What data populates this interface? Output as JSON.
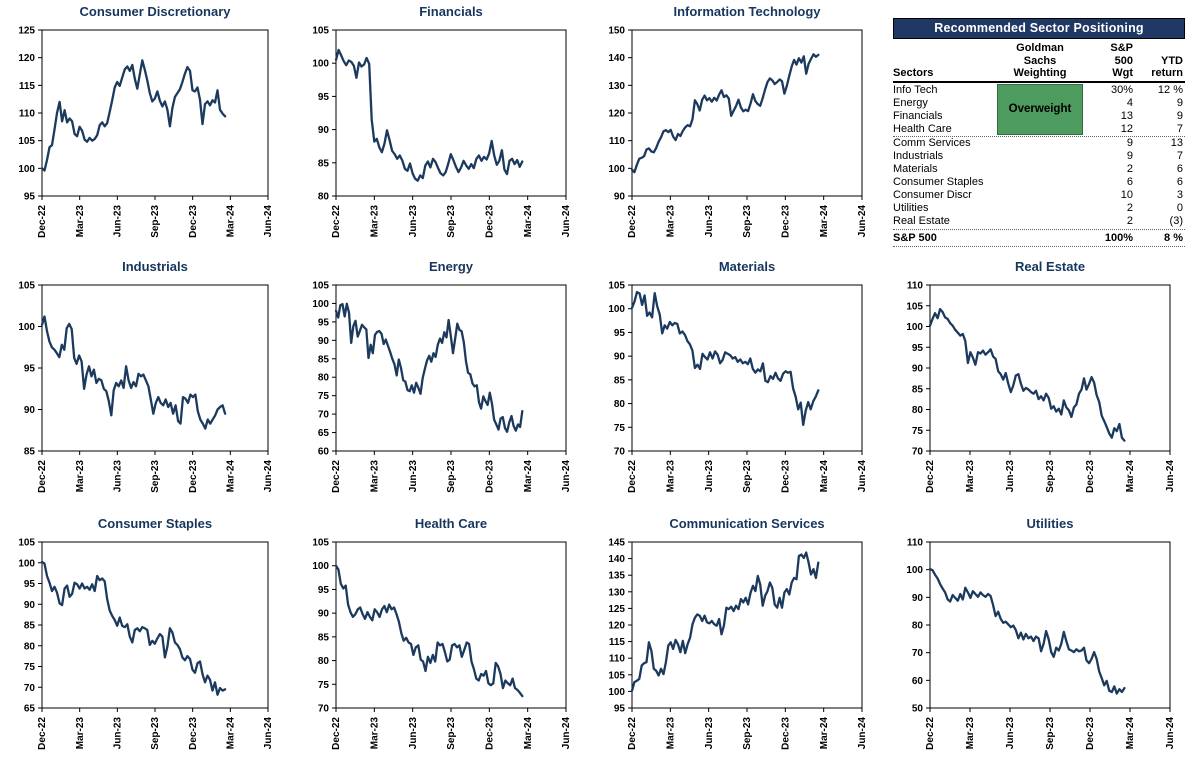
{
  "colors": {
    "line": "#1C3A5E",
    "title": "#17365D",
    "axis": "#000000",
    "table_header_bg": "#1F3864",
    "table_header_text": "#FFFFFF",
    "overweight_bg": "#4E9B5F"
  },
  "x_tick_labels": [
    "Dec-22",
    "Mar-23",
    "Jun-23",
    "Sep-23",
    "Dec-23",
    "Mar-24",
    "Jun-24"
  ],
  "chart_data": [
    {
      "type": "line",
      "id": "consumer-discretionary",
      "row": 0,
      "col": 0,
      "title": "Consumer Discretionary",
      "ylim": [
        95,
        125
      ],
      "ystep": 5,
      "values": [
        100,
        99.6,
        101.5,
        103.8,
        104.2,
        107,
        110,
        112,
        108.5,
        110.5,
        108.3,
        109,
        108.5,
        106.2,
        105.8,
        107.5,
        106.8,
        105.2,
        104.8,
        105.5,
        105,
        105.3,
        106,
        107.8,
        108.3,
        107.6,
        108.2,
        110.2,
        112.3,
        114.6,
        115.6,
        114.9,
        116.4,
        117.9,
        118.4,
        117.6,
        118.7,
        116.2,
        114.4,
        117,
        119.5,
        117.8,
        115.9,
        113.6,
        112.1,
        112.6,
        113.9,
        112.2,
        111.2,
        112.1,
        110.6,
        107.6,
        110.9,
        112.9,
        113.6,
        114.3,
        115.6,
        117.1,
        118.3,
        117.6,
        114.1,
        113.9,
        114.6,
        112.4,
        108,
        111.6,
        112.1,
        111.4,
        112.3,
        111.9,
        114.1,
        110.6,
        109.9,
        109.4
      ]
    },
    {
      "type": "line",
      "id": "financials",
      "row": 0,
      "col": 1,
      "title": "Financials",
      "ylim": [
        80,
        105
      ],
      "ystep": 5,
      "values": [
        100.5,
        102,
        101.2,
        100.3,
        99.7,
        100.4,
        100.2,
        99.6,
        97.8,
        100.1,
        99.5,
        99.8,
        100.8,
        99.9,
        91.5,
        88.2,
        88.6,
        87.3,
        86.6,
        87.9,
        89.9,
        88.4,
        86.8,
        86.3,
        85.6,
        86.1,
        85.3,
        84.1,
        83.8,
        84.9,
        83.4,
        82.6,
        82.3,
        83.1,
        82.7,
        84.6,
        85.2,
        84.3,
        85.6,
        85.1,
        84.2,
        83.4,
        83.1,
        83.6,
        84.9,
        86.3,
        85.4,
        84.4,
        83.6,
        84.3,
        85.3,
        84.6,
        84.1,
        84.8,
        84.2,
        85.6,
        86.1,
        85.3,
        85.9,
        85.5,
        86.4,
        88.3,
        86.1,
        84.7,
        85.3,
        86.9,
        84,
        83.3,
        85.3,
        85.6,
        84.8,
        85.4,
        84.4,
        85.2
      ]
    },
    {
      "type": "line",
      "id": "information-technology",
      "row": 0,
      "col": 2,
      "title": "Information Technology",
      "ylim": [
        90,
        150
      ],
      "ystep": 10,
      "values": [
        99.5,
        98.6,
        101.2,
        103.5,
        103.8,
        104.4,
        106.8,
        107.2,
        106.1,
        105.8,
        107.4,
        109.6,
        111.2,
        113.4,
        113.8,
        113.1,
        113.9,
        111.5,
        110.2,
        112.4,
        111.7,
        113.5,
        114.8,
        115.6,
        115.2,
        117.8,
        124.6,
        123.2,
        120.9,
        124.8,
        126.3,
        124.6,
        125.4,
        124.1,
        125.5,
        124.5,
        126.6,
        128.2,
        125.8,
        126.4,
        125.2,
        119,
        120.8,
        122.5,
        124.8,
        122,
        120.6,
        121.2,
        120.7,
        123.5,
        126.8,
        124.3,
        123.2,
        122.6,
        125.4,
        128.5,
        131.2,
        132.5,
        131.8,
        130.5,
        131.2,
        132.1,
        131.5,
        127,
        129.8,
        133.5,
        136.8,
        139.2,
        137.5,
        139.8,
        138.2,
        140.5,
        134.2,
        137.8,
        139.5,
        141.2,
        140.3,
        141
      ]
    },
    {
      "type": "line",
      "id": "industrials",
      "row": 1,
      "col": 0,
      "title": "Industrials",
      "ylim": [
        85,
        105
      ],
      "ystep": 5,
      "values": [
        100.2,
        101.2,
        99.5,
        98.2,
        97.5,
        97.2,
        96.8,
        96.3,
        97.8,
        97.2,
        99.8,
        100.3,
        99.7,
        96.2,
        95.5,
        96.5,
        95.8,
        92.5,
        94.2,
        95.2,
        94,
        94.8,
        93.2,
        93.7,
        93.5,
        92.5,
        92.2,
        91,
        89.3,
        92.3,
        93.2,
        92.8,
        93.5,
        92.6,
        95.2,
        93.5,
        92.6,
        93.3,
        92.8,
        94.3,
        94,
        94.2,
        93.5,
        92.8,
        91.2,
        89.5,
        90.8,
        91.5,
        90.8,
        90.5,
        91.2,
        90.3,
        90.8,
        89.5,
        90.5,
        88.6,
        88.3,
        91.5,
        91.3,
        90.8,
        91.8,
        91.5,
        91.8,
        89.8,
        88.8,
        88.3,
        87.7,
        88.8,
        88.3,
        88.8,
        89.3,
        90,
        90.3,
        90.5,
        89.5
      ]
    },
    {
      "type": "line",
      "id": "energy",
      "row": 1,
      "col": 1,
      "title": "Energy",
      "ylim": [
        60,
        105
      ],
      "ystep": 5,
      "values": [
        98,
        96.2,
        99.5,
        99.8,
        96.5,
        99.9,
        97.5,
        89.3,
        93.8,
        95.3,
        91,
        92.5,
        94.2,
        93.5,
        93,
        85.2,
        88.8,
        86.5,
        91.5,
        92.3,
        92.5,
        91.8,
        89,
        90.2,
        88.5,
        86.8,
        85,
        83.5,
        80.5,
        84.8,
        82.5,
        79.2,
        78.8,
        76.5,
        76.2,
        77.8,
        75.8,
        78.5,
        77.2,
        75.5,
        79.8,
        82.2,
        84.5,
        85.8,
        84.2,
        86.5,
        85.5,
        88.8,
        90.5,
        89.3,
        92.2,
        90.8,
        95.5,
        91.2,
        86.5,
        90.3,
        94.5,
        92.8,
        92.5,
        89.5,
        84.3,
        81.2,
        80.8,
        78.3,
        77.5,
        77.8,
        73.2,
        71.5,
        74.8,
        73.5,
        72.5,
        75.8,
        72.8,
        68.5,
        67.2,
        65.8,
        68.8,
        69.2,
        66.2,
        65.2,
        67.8,
        69.5,
        66.8,
        65.5,
        67.2,
        66.5,
        70.8
      ]
    },
    {
      "type": "line",
      "id": "materials",
      "row": 1,
      "col": 2,
      "title": "Materials",
      "ylim": [
        70,
        105
      ],
      "ystep": 5,
      "values": [
        100.2,
        101.5,
        103.5,
        103.2,
        100.8,
        102.8,
        98.5,
        99.2,
        98.2,
        103.3,
        100.5,
        98.8,
        94.8,
        96.5,
        95.8,
        97.2,
        96.5,
        97,
        96.8,
        94.8,
        95.2,
        94.5,
        93.2,
        92.5,
        91.2,
        87.5,
        88.2,
        87.3,
        90.5,
        89.8,
        89.3,
        90.8,
        89.5,
        91,
        90.3,
        88.5,
        89.2,
        90.8,
        90.5,
        90.2,
        89.5,
        89.8,
        88.8,
        89.3,
        88.5,
        88.8,
        88.3,
        89.5,
        87.3,
        86.5,
        87.2,
        86.8,
        88.5,
        84.8,
        84.5,
        85.8,
        85.2,
        86.5,
        85.3,
        84.8,
        86.3,
        86.8,
        86.5,
        86.7,
        83.2,
        81.5,
        78.8,
        80.2,
        75.5,
        78.5,
        80.3,
        78.8,
        80.5,
        81.5,
        82.8
      ]
    },
    {
      "type": "line",
      "id": "real-estate",
      "row": 1,
      "col": 3,
      "title": "Real Estate",
      "ylim": [
        70,
        110
      ],
      "ystep": 5,
      "values": [
        100.2,
        101.8,
        103.2,
        102,
        104.2,
        103.5,
        102.2,
        101.8,
        100.8,
        100.2,
        99.2,
        98.5,
        97.8,
        98.2,
        96.5,
        91.2,
        93.8,
        92.5,
        90.8,
        93.8,
        93.5,
        94.2,
        93.2,
        93.8,
        94.5,
        92.8,
        92.2,
        89.2,
        88.5,
        87.2,
        88.8,
        86.2,
        84.2,
        85.8,
        88.2,
        88.5,
        86.2,
        84.5,
        85.2,
        84.8,
        84.2,
        83.8,
        84.5,
        82.5,
        83.2,
        82.2,
        83.8,
        82.8,
        80.2,
        80.8,
        79.5,
        80.2,
        78.8,
        82.2,
        80.5,
        79.8,
        78.2,
        80.5,
        81.2,
        83.8,
        84.8,
        87.5,
        84.8,
        86.2,
        87.8,
        86.5,
        83.5,
        81.8,
        78.5,
        77.2,
        75.8,
        74.2,
        73.2,
        75.5,
        74.8,
        76.5,
        73.2,
        72.5
      ]
    },
    {
      "type": "line",
      "id": "consumer-staples",
      "row": 2,
      "col": 0,
      "title": "Consumer Staples",
      "ylim": [
        65,
        105
      ],
      "ystep": 5,
      "values": [
        100.2,
        99.8,
        96.8,
        95.2,
        93.2,
        94.2,
        92.8,
        90.2,
        89.8,
        93.8,
        94.5,
        91.8,
        92.5,
        95.2,
        94.8,
        93.8,
        95,
        93.8,
        94.2,
        93.5,
        94.8,
        93.2,
        96.8,
        95.8,
        96.2,
        95.5,
        91.2,
        88.5,
        87.2,
        86.2,
        84.8,
        86.8,
        84.8,
        84.5,
        85.2,
        82.2,
        80.8,
        83.8,
        84.2,
        83.5,
        84.5,
        84.2,
        83.8,
        80.2,
        81.2,
        80.5,
        81.8,
        82.8,
        82.2,
        77.2,
        79.8,
        84.2,
        83.2,
        80.8,
        80.2,
        79.2,
        77.2,
        76.5,
        77.5,
        76.8,
        74.2,
        73.5,
        75.8,
        76.2,
        73.2,
        71.2,
        72.8,
        71.8,
        69.2,
        71.2,
        68.2,
        69.8,
        69.2,
        69.5
      ]
    },
    {
      "type": "line",
      "id": "health-care",
      "row": 2,
      "col": 1,
      "title": "Health Care",
      "ylim": [
        70,
        105
      ],
      "ystep": 5,
      "values": [
        100,
        99.2,
        96.2,
        95.2,
        95.8,
        91.8,
        90.2,
        89.2,
        89.8,
        90.8,
        91.2,
        89.8,
        88.8,
        90.2,
        89.2,
        88.5,
        90.8,
        90.2,
        89.2,
        90.8,
        91.5,
        90.2,
        91.8,
        90.8,
        91.2,
        89.8,
        88.2,
        85.8,
        84.2,
        84.8,
        83.8,
        83.5,
        81.2,
        82.8,
        83.2,
        80.2,
        79.8,
        77.8,
        80.8,
        79.5,
        81.2,
        79.8,
        83.8,
        83.2,
        83.5,
        81.8,
        79.8,
        80.2,
        83.2,
        83.5,
        82.8,
        83.2,
        80.8,
        82.2,
        83.8,
        83.5,
        79.8,
        78.2,
        76.2,
        75.8,
        77.2,
        76.8,
        77.8,
        75.2,
        74.8,
        75.2,
        79.5,
        78.8,
        77.2,
        74.2,
        75.8,
        75.2,
        74.8,
        76.2,
        74.2,
        73.8,
        73.2,
        72.5
      ]
    },
    {
      "type": "line",
      "id": "communication-services",
      "row": 2,
      "col": 2,
      "title": "Communication Services",
      "ylim": [
        95,
        145
      ],
      "ystep": 5,
      "values": [
        100.2,
        102.8,
        103.2,
        103.8,
        107.8,
        108.5,
        108.8,
        114.8,
        112.2,
        106.8,
        106.2,
        104.8,
        106.8,
        105.2,
        108.8,
        113.8,
        114.8,
        112.8,
        115.5,
        114.2,
        111.8,
        115.2,
        111.5,
        114.2,
        116.2,
        120.2,
        122.2,
        123.2,
        122.8,
        121.2,
        122.8,
        120.8,
        120.5,
        121.2,
        120.2,
        119.8,
        121.8,
        117.2,
        119.8,
        125.2,
        124.8,
        125.5,
        124.2,
        125.8,
        124.8,
        127.8,
        126.8,
        128.2,
        126.2,
        129.8,
        131.8,
        130.2,
        134.8,
        132.2,
        125.8,
        128.8,
        130.2,
        132.8,
        131.2,
        126.2,
        125.2,
        128.2,
        125.2,
        129.8,
        130.8,
        129.2,
        132.8,
        134.2,
        133.8,
        140.8,
        141.2,
        140.2,
        141.8,
        138.8,
        135.2,
        136.8,
        134.2,
        138.8
      ]
    },
    {
      "type": "line",
      "id": "utilities",
      "row": 2,
      "col": 3,
      "title": "Utilities",
      "ylim": [
        50,
        110
      ],
      "ystep": 10,
      "values": [
        100.2,
        99.8,
        98.2,
        96.8,
        94.8,
        93.2,
        91.8,
        89.2,
        88.5,
        90.8,
        89.8,
        88.8,
        91.2,
        89.2,
        93.5,
        91.8,
        89.8,
        92.2,
        91.2,
        90.2,
        91.8,
        90.8,
        90.2,
        91.2,
        90.5,
        87.2,
        83.2,
        84.8,
        82.2,
        80.8,
        81.2,
        80.2,
        79.2,
        79.8,
        78.2,
        75.2,
        77.2,
        74.8,
        76.8,
        75.2,
        75.8,
        74.2,
        75.8,
        75.2,
        70.5,
        73.2,
        77.8,
        74.8,
        70.2,
        68.5,
        71.8,
        70.8,
        73.2,
        77.5,
        74.2,
        71.2,
        70.8,
        70.2,
        71.2,
        70.5,
        70.8,
        71.8,
        67.2,
        66.2,
        67.8,
        70.2,
        67.8,
        63.2,
        60.8,
        58.2,
        59.8,
        56.2,
        55.8,
        57.8,
        55.2,
        56.8,
        55.8,
        57.2
      ]
    }
  ],
  "table": {
    "title": "Recommended Sector Positioning",
    "header": {
      "sectors": "Sectors",
      "goldman": [
        "Goldman",
        "Sachs",
        "Weighting"
      ],
      "sp": [
        "S&P",
        "500",
        "Wgt"
      ],
      "ytd": [
        "YTD",
        "return"
      ]
    },
    "overweight_label": "Overweight",
    "overweight_rows": [
      {
        "sector": "Info Tech",
        "sp": "30%",
        "ytd": "12 %"
      },
      {
        "sector": "Energy",
        "sp": "4",
        "ytd": "9"
      },
      {
        "sector": "Financials",
        "sp": "13",
        "ytd": "9"
      },
      {
        "sector": "Health Care",
        "sp": "12",
        "ytd": "7"
      }
    ],
    "other_rows": [
      {
        "sector": "Comm Services",
        "sp": "9",
        "ytd": "13"
      },
      {
        "sector": "Industrials",
        "sp": "9",
        "ytd": "7"
      },
      {
        "sector": "Materials",
        "sp": "2",
        "ytd": "6"
      },
      {
        "sector": "Consumer Staples",
        "sp": "6",
        "ytd": "6"
      },
      {
        "sector": "Consumer Discr",
        "sp": "10",
        "ytd": "3"
      },
      {
        "sector": "Utilities",
        "sp": "2",
        "ytd": "0"
      },
      {
        "sector": "Real Estate",
        "sp": "2",
        "ytd": "(3)"
      }
    ],
    "total": {
      "sector": "S&P 500",
      "sp": "100%",
      "ytd": "8 %"
    }
  }
}
